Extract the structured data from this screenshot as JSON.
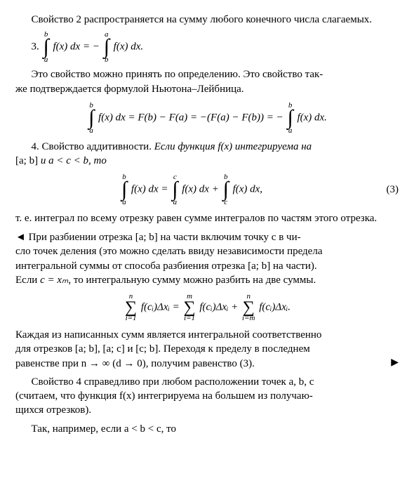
{
  "para1": "Свойство 2 распространяется на сумму любого конечного числа слагаемых.",
  "item3_num": "3.",
  "eq3": {
    "int1": {
      "lo": "a",
      "hi": "b"
    },
    "mid1": "f(x) dx = −",
    "int2": {
      "lo": "b",
      "hi": "a"
    },
    "tail": "f(x) dx."
  },
  "para2a": "Это свойство можно принять по определению. Это свойство так-",
  "para2b": "же подтверждается формулой Ньютона–Лейбница.",
  "eq_nl": {
    "int1": {
      "lo": "a",
      "hi": "b"
    },
    "p1": "f(x) dx = F(b) − F(a) = −(F(a) − F(b)) = −",
    "int2": {
      "lo": "a",
      "hi": "b"
    },
    "p2": "f(x) dx."
  },
  "item4_lead": "4. Свойство аддитивности. ",
  "item4_it": "Если функция f(x) интегрируема на ",
  "item4_line2_pre": "[a; b] ",
  "item4_line2_it": "и a < c < b, то",
  "eq_add": {
    "int1": {
      "lo": "a",
      "hi": "b"
    },
    "p1": "f(x) dx = ",
    "int2": {
      "lo": "a",
      "hi": "c"
    },
    "p2": "f(x) dx + ",
    "int3": {
      "lo": "c",
      "hi": "b"
    },
    "p3": "f(x) dx,",
    "num": "(3)"
  },
  "para3": "т. е. интеграл по всему отрезку равен сумме интегралов по частям этого отрезка.",
  "proof_l1": "◄ При разбиении отрезка [a; b] на части включим точку c в чи-",
  "proof_l2": "сло точек деления (это можно сделать ввиду независимости предела",
  "proof_l3": "интегральной суммы от способа разбиения отрезка [a; b] на части).",
  "proof_l4_pre": "Если ",
  "proof_l4_it": "c = xₘ",
  "proof_l4_post": ", то интегральную сумму можно разбить на две суммы.",
  "eq_sum": {
    "s1": {
      "lo": "i=1",
      "hi": "n"
    },
    "t1": "f(cᵢ)Δxᵢ = ",
    "s2": {
      "lo": "i=1",
      "hi": "m"
    },
    "t2": "f(cᵢ)Δxᵢ + ",
    "s3": {
      "lo": "i=m",
      "hi": "n"
    },
    "t3": "f(cᵢ)Δxᵢ."
  },
  "para4_l1": "Каждая из написанных сумм является интегральной соответственно",
  "para4_l2": "для отрезков [a; b], [a; c] и [c; b]. Переходя к пределу в последнем",
  "para4_l3": "равенстве при n → ∞ (d → 0), получим равенство (3).",
  "tri_end": "▶",
  "para5_l1": "Свойство 4 справедливо при любом расположении точек a, b, c",
  "para5_l2": "(считаем, что функция f(x) интегрируема на большем из получаю-",
  "para5_l3": "щихся отрезков).",
  "para6": "Так, например, если a < b < c, то"
}
